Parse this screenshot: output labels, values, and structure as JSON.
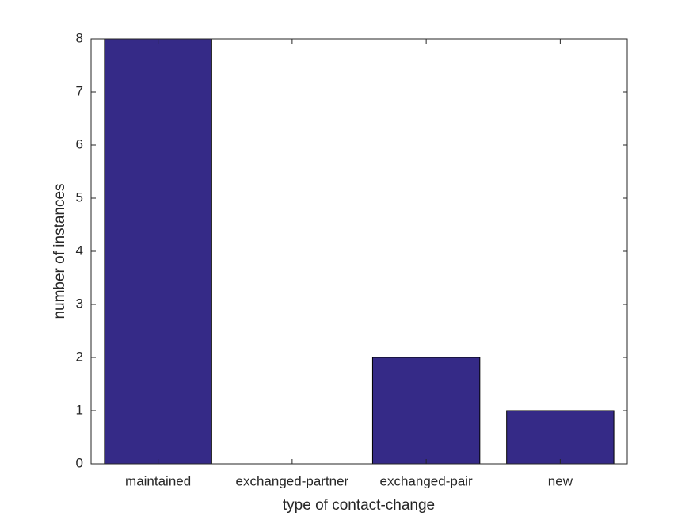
{
  "chart_data": {
    "type": "bar",
    "x_label": "type of contact-change",
    "y_label": "number of instances",
    "categories": [
      "maintained",
      "exchanged-partner",
      "exchanged-pair",
      "new"
    ],
    "values": [
      8,
      0,
      2,
      1
    ],
    "color": "#352a87",
    "ylim": [
      0,
      8
    ],
    "yticks": [
      0,
      1,
      2,
      3,
      4,
      5,
      6,
      7,
      8
    ],
    "grid": false
  }
}
